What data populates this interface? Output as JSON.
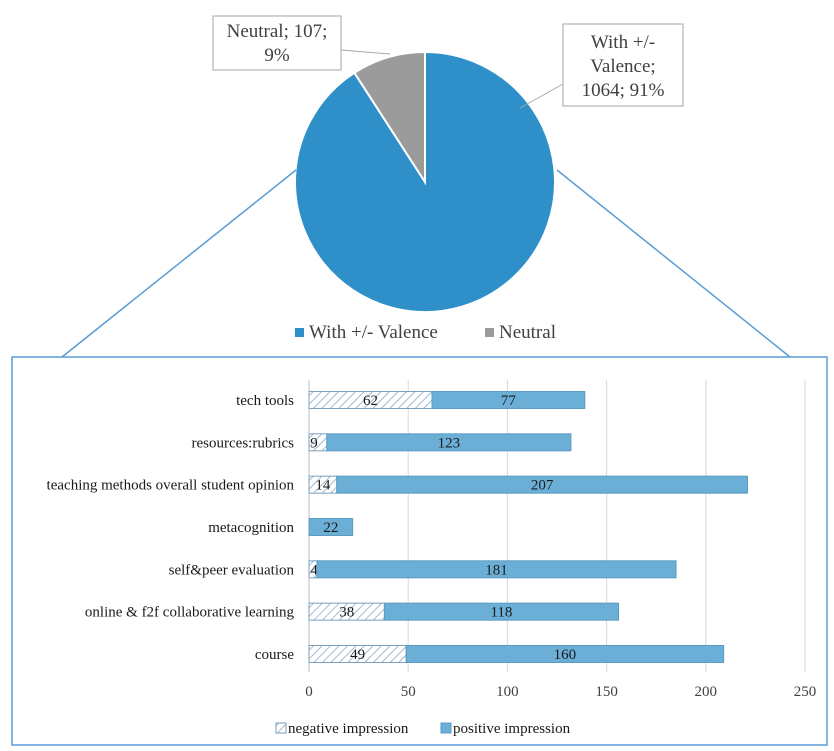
{
  "chart_data": [
    {
      "type": "pie",
      "slices": [
        {
          "name": "With +/- Valence",
          "value": 1064,
          "percent": "91%",
          "color": "#2e8fc9"
        },
        {
          "name": "Neutral",
          "value": 107,
          "percent": "9%",
          "color": "#9b9b9b"
        }
      ],
      "data_labels": [
        [
          "With +/-",
          "Valence;",
          "1064; 91%"
        ],
        [
          "Neutral; 107;",
          "9%"
        ]
      ],
      "legend": [
        "With +/- Valence",
        "Neutral"
      ],
      "legend_position": "bottom"
    },
    {
      "type": "bar",
      "orientation": "horizontal",
      "stacked": true,
      "categories": [
        "tech tools",
        "resources:rubrics",
        "teaching methods overall student opinion",
        "metacognition",
        "self&peer evaluation",
        "online & f2f collaborative learning",
        "course"
      ],
      "series": [
        {
          "name": "negative impression",
          "values": [
            62,
            9,
            14,
            0,
            4,
            38,
            49
          ],
          "color": "#ffffff",
          "pattern": "hatch"
        },
        {
          "name": "positive impression",
          "values": [
            77,
            123,
            207,
            22,
            181,
            118,
            160
          ],
          "color": "#6baed6"
        }
      ],
      "xlim": [
        0,
        250
      ],
      "xticks": [
        "0",
        "50",
        "100",
        "150",
        "200",
        "250"
      ],
      "grid": true,
      "legend_position": "bottom"
    }
  ]
}
